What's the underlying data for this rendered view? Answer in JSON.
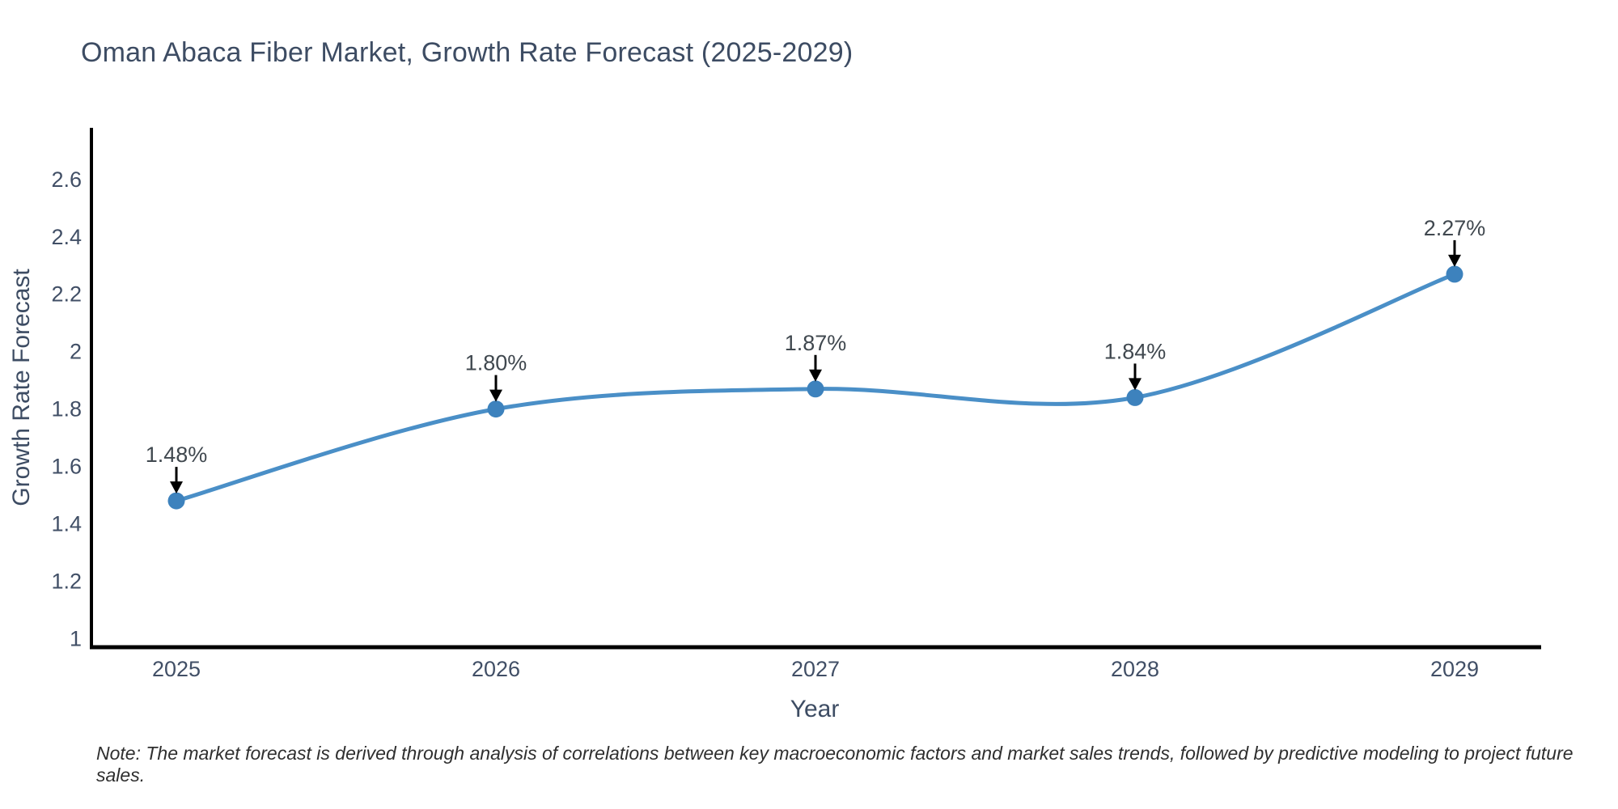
{
  "title": "Oman Abaca Fiber Market, Growth Rate Forecast (2025-2029)",
  "footnote": "Note: The market forecast is derived through analysis of correlations between key macroeconomic factors and market sales trends, followed by predictive modeling to project future sales.",
  "chart_data": {
    "type": "line",
    "title": "Oman Abaca Fiber Market, Growth Rate Forecast (2025-2029)",
    "xlabel": "Year",
    "ylabel": "Growth Rate Forecast",
    "categories": [
      "2025",
      "2026",
      "2027",
      "2028",
      "2029"
    ],
    "values": [
      1.48,
      1.8,
      1.87,
      1.84,
      2.27
    ],
    "point_labels": [
      "1.48%",
      "1.80%",
      "1.87%",
      "1.84%",
      "2.27%"
    ],
    "yticks": [
      1,
      1.2,
      1.4,
      1.6,
      1.8,
      2,
      2.2,
      2.4,
      2.6
    ],
    "ytick_labels": [
      "1",
      "1.2",
      "1.4",
      "1.6",
      "1.8",
      "2",
      "2.2",
      "2.4",
      "2.6"
    ],
    "ylim": [
      0.97,
      2.78
    ],
    "line_shape": "spline",
    "grid": false,
    "legend": "none",
    "colors": {
      "line": "#4a8fc7",
      "marker": "#3d82bd",
      "arrow": "#000000",
      "axis": "#000000",
      "tick_text": "#414f66",
      "annotation_text": "#40484f"
    }
  }
}
